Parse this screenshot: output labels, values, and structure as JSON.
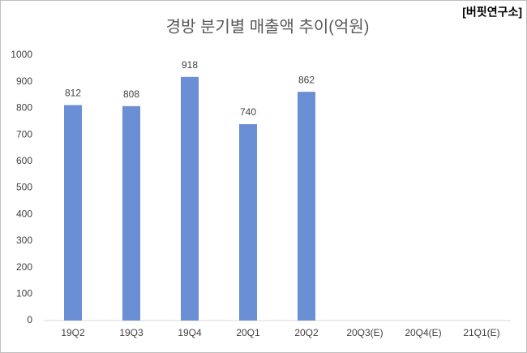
{
  "chart_data": {
    "type": "bar",
    "title": "경방 분기별 매출액 추이(억원)",
    "watermark": "[버핏연구소]",
    "categories": [
      "19Q2",
      "19Q3",
      "19Q4",
      "20Q1",
      "20Q2",
      "20Q3(E)",
      "20Q4(E)",
      "21Q1(E)"
    ],
    "values": [
      812,
      808,
      918,
      740,
      862,
      null,
      null,
      null
    ],
    "color": "#6a8fd4",
    "ylim": [
      0,
      1000
    ],
    "yticks": [
      0,
      100,
      200,
      300,
      400,
      500,
      600,
      700,
      800,
      900,
      1000
    ],
    "grid": false
  }
}
